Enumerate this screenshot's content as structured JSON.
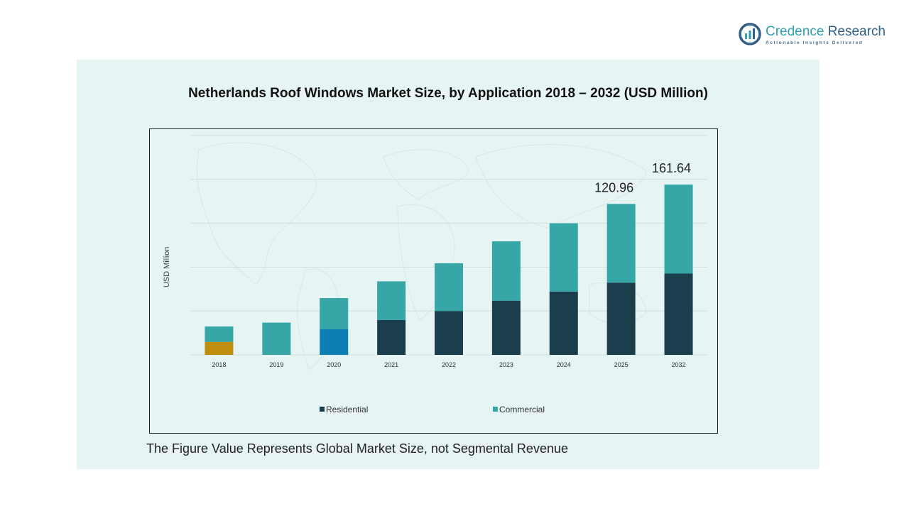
{
  "logo": {
    "name_part1": "Credence",
    "name_part2": "Research",
    "tagline": "Actionable Insights Delivered",
    "colors": {
      "primary": "#2f5f8a",
      "accent": "#2f9fb3"
    }
  },
  "footnote": "The Figure Value Represents Global Market Size, not Segmental Revenue",
  "chart_data": {
    "type": "bar",
    "stacked": true,
    "title": "Netherlands Roof Windows Market Size, by Application 2018 – 2032 (USD Million)",
    "ylabel": "USD Million",
    "xlabel": "",
    "categories": [
      "2018",
      "2019",
      "2020",
      "2021",
      "2022",
      "2023",
      "2024",
      "2025",
      "2032"
    ],
    "series": [
      {
        "name": "Residential",
        "color": "#1a3e4c",
        "values": [
          10,
          0,
          20,
          27,
          34,
          42,
          49,
          56,
          63
        ]
      },
      {
        "name": "Commercial",
        "color": "#36a6a6",
        "values": [
          12,
          25,
          24,
          30,
          37,
          46,
          53,
          61,
          69
        ]
      }
    ],
    "highlight_colors": {
      "2018": {
        "Residential": "#c18d0f"
      },
      "2020": {
        "Residential": "#0e7fb4"
      }
    },
    "annotations": [
      {
        "category": "2025",
        "text": "120.96"
      },
      {
        "category": "2032",
        "text": "161.64"
      }
    ],
    "ylim": [
      0,
      170
    ],
    "grid": true,
    "legend_position": "bottom"
  }
}
